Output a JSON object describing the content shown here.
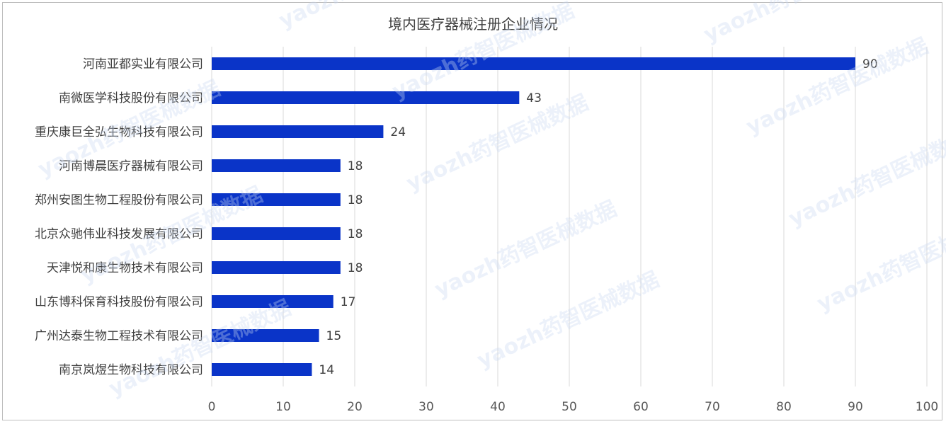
{
  "chart_data": {
    "type": "bar",
    "orientation": "horizontal",
    "title": "境内医疗器械注册企业情况",
    "categories": [
      "河南亚都实业有限公司",
      "南微医学科技股份有限公司",
      "重庆康巨全弘生物科技有限公司",
      "河南博晨医疗器械有限公司",
      "郑州安图生物工程股份有限公司",
      "北京众驰伟业科技发展有限公司",
      "天津悦和康生物技术有限公司",
      "山东博科保育科技股份有限公司",
      "广州达泰生物工程技术有限公司",
      "南京岚煜生物科技有限公司"
    ],
    "values": [
      90,
      43,
      24,
      18,
      18,
      18,
      18,
      17,
      15,
      14
    ],
    "xlim": [
      0,
      100
    ],
    "xticks": [
      0,
      10,
      20,
      30,
      40,
      50,
      60,
      70,
      80,
      90,
      100
    ],
    "grid": true,
    "legend": "none",
    "bar_color": "#0a34c8",
    "watermark": "yaozh药智医械数据"
  }
}
